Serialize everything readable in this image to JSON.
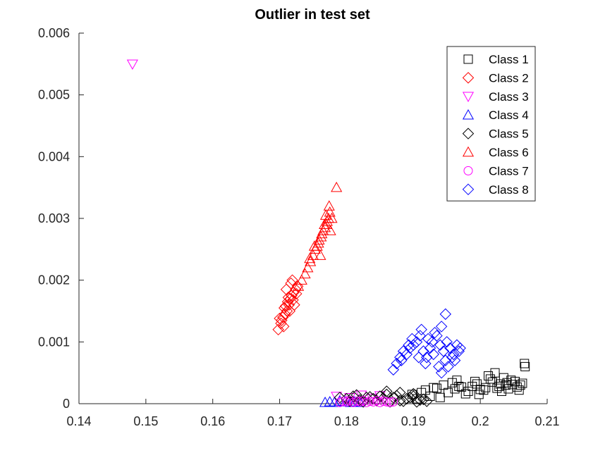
{
  "chart_data": {
    "type": "scatter",
    "title": "Outlier in test set",
    "xlabel": "",
    "ylabel": "",
    "xlim": [
      0.14,
      0.21
    ],
    "ylim": [
      0,
      0.006
    ],
    "xticks": [
      "0.14",
      "0.15",
      "0.16",
      "0.17",
      "0.18",
      "0.19",
      "0.2",
      "0.21"
    ],
    "yticks": [
      "0",
      "0.001",
      "0.002",
      "0.003",
      "0.004",
      "0.005",
      "0.006"
    ],
    "grid": false,
    "legend_position": "top-right",
    "series": [
      {
        "name": "Class 1",
        "marker": "square",
        "color": "#000000",
        "x": [
          0.1898,
          0.1918,
          0.1935,
          0.1952,
          0.1968,
          0.1982,
          0.1995,
          0.2008,
          0.2018,
          0.2028,
          0.2038,
          0.2046,
          0.2055,
          0.2063,
          0.1905,
          0.1925,
          0.1945,
          0.1962,
          0.1978,
          0.1992,
          0.2005,
          0.2015,
          0.2025,
          0.2035,
          0.2042,
          0.2052,
          0.206,
          0.2067,
          0.2066,
          0.1912,
          0.1958,
          0.1988,
          0.2012,
          0.2032,
          0.2048,
          0.194,
          0.1972,
          0.2,
          0.2022,
          0.204,
          0.2058,
          0.193,
          0.1965,
          0.1998,
          0.203
        ],
        "y": [
          0.00015,
          0.00022,
          0.00025,
          0.00018,
          0.00028,
          0.0002,
          0.00032,
          0.00026,
          0.00035,
          0.00028,
          0.0003,
          0.00038,
          0.00027,
          0.00033,
          8e-05,
          0.00012,
          0.0003,
          0.00024,
          0.00016,
          0.00036,
          0.00022,
          0.0004,
          0.00025,
          0.00042,
          0.00024,
          0.00036,
          0.0003,
          0.0006,
          0.00065,
          0.00018,
          0.00034,
          0.00028,
          0.00045,
          0.0002,
          0.00031,
          0.0001,
          0.00027,
          0.00023,
          0.0005,
          0.00034,
          0.00022,
          0.00026,
          0.00038,
          0.00015,
          0.00032
        ]
      },
      {
        "name": "Class 2",
        "marker": "diamond",
        "color": "#ff0000",
        "x": [
          0.1698,
          0.1702,
          0.1705,
          0.1708,
          0.1711,
          0.1714,
          0.1716,
          0.1718,
          0.1721,
          0.1724,
          0.1727,
          0.1703,
          0.1707,
          0.1712,
          0.1715,
          0.1719,
          0.1722,
          0.171,
          0.1706,
          0.1717,
          0.17,
          0.1713,
          0.1709,
          0.1725,
          0.172
        ],
        "y": [
          0.0012,
          0.0013,
          0.0014,
          0.00145,
          0.0015,
          0.0016,
          0.0017,
          0.00175,
          0.0018,
          0.00185,
          0.0019,
          0.00135,
          0.00155,
          0.00165,
          0.0015,
          0.002,
          0.0016,
          0.00185,
          0.00125,
          0.00195,
          0.00138,
          0.00172,
          0.00158,
          0.00178,
          0.00168
        ]
      },
      {
        "name": "Class 3",
        "marker": "triangle-down",
        "color": "#ff00ff",
        "x": [
          0.148,
          0.1785,
          0.1805,
          0.1822,
          0.1838,
          0.185
        ],
        "y": [
          0.0055,
          0.00012,
          0.0001,
          0.00014,
          9e-05,
          0.00013
        ]
      },
      {
        "name": "Class 4",
        "marker": "triangle-up",
        "color": "#0000ff",
        "x": [
          0.1768,
          0.1775,
          0.1782,
          0.179,
          0.1798,
          0.1806,
          0.1812,
          0.182
        ],
        "y": [
          2e-05,
          3e-05,
          2e-05,
          4e-05,
          3e-05,
          2e-05,
          3e-05,
          2e-05
        ]
      },
      {
        "name": "Class 5",
        "marker": "diamond",
        "color": "#000000",
        "x": [
          0.179,
          0.18,
          0.181,
          0.182,
          0.183,
          0.184,
          0.185,
          0.186,
          0.187,
          0.188,
          0.189,
          0.19,
          0.191,
          0.192,
          0.1805,
          0.1825,
          0.1845,
          0.1865,
          0.1885,
          0.1905,
          0.1815,
          0.1835,
          0.1855,
          0.1875,
          0.1895,
          0.1915,
          0.186,
          0.188,
          0.19
        ],
        "y": [
          0.0001,
          8e-05,
          0.00012,
          6e-05,
          0.0001,
          8e-05,
          0.00012,
          0.00015,
          0.0001,
          5e-05,
          8e-05,
          0.00012,
          6e-05,
          4e-05,
          4e-05,
          3e-05,
          5e-05,
          3e-05,
          4e-05,
          3e-05,
          0.00014,
          0.00011,
          9e-05,
          0.00013,
          0.0001,
          7e-05,
          0.0002,
          0.00018,
          0.00016
        ]
      },
      {
        "name": "Class 6",
        "marker": "triangle-up",
        "color": "#ff0000",
        "x": [
          0.1728,
          0.1733,
          0.1738,
          0.1742,
          0.1746,
          0.175,
          0.1753,
          0.1756,
          0.1759,
          0.1762,
          0.1765,
          0.1768,
          0.177,
          0.1773,
          0.1775,
          0.1778,
          0.1785,
          0.1745,
          0.1752,
          0.1758,
          0.1763,
          0.1767,
          0.1771,
          0.1774,
          0.1761,
          0.1769,
          0.1776
        ],
        "y": [
          0.0019,
          0.002,
          0.0021,
          0.0022,
          0.0023,
          0.0024,
          0.0025,
          0.00255,
          0.00265,
          0.0027,
          0.0028,
          0.00285,
          0.0029,
          0.003,
          0.0031,
          0.003,
          0.0035,
          0.00235,
          0.00255,
          0.0026,
          0.00275,
          0.0029,
          0.00295,
          0.0032,
          0.0024,
          0.00305,
          0.0028
        ]
      },
      {
        "name": "Class 7",
        "marker": "circle",
        "color": "#ff00ff",
        "x": [
          0.179,
          0.1795,
          0.18,
          0.1805,
          0.181,
          0.1815,
          0.182,
          0.1825,
          0.183,
          0.1835,
          0.184,
          0.1845,
          0.185,
          0.1855,
          0.186,
          0.1865,
          0.187
        ],
        "y": [
          2e-05,
          4e-05,
          3e-05,
          5e-05,
          2e-05,
          4e-05,
          3e-05,
          5e-05,
          2e-05,
          4e-05,
          3e-05,
          5e-05,
          2e-05,
          4e-05,
          3e-05,
          2e-05,
          3e-05
        ]
      },
      {
        "name": "Class 8",
        "marker": "diamond",
        "color": "#0000ff",
        "x": [
          0.187,
          0.1875,
          0.188,
          0.1885,
          0.189,
          0.1895,
          0.19,
          0.1905,
          0.191,
          0.1915,
          0.192,
          0.1925,
          0.193,
          0.1935,
          0.194,
          0.1945,
          0.195,
          0.1955,
          0.196,
          0.1965,
          0.197,
          0.1882,
          0.1893,
          0.1908,
          0.1918,
          0.1928,
          0.1938,
          0.1948,
          0.1958,
          0.1968,
          0.1912,
          0.1922,
          0.1932,
          0.1942,
          0.1952,
          0.1962,
          0.1948,
          0.1898,
          0.1942
        ],
        "y": [
          0.00055,
          0.00065,
          0.00075,
          0.00085,
          0.0008,
          0.0009,
          0.00095,
          0.001,
          0.0011,
          0.00085,
          0.00075,
          0.0009,
          0.0008,
          0.0011,
          0.00095,
          0.00085,
          0.001,
          0.0009,
          0.0008,
          0.00095,
          0.0009,
          0.0007,
          0.00095,
          0.00075,
          0.00065,
          0.001,
          0.0006,
          0.0007,
          0.00075,
          0.00085,
          0.0012,
          0.00105,
          0.00115,
          0.00125,
          0.0006,
          0.0007,
          0.00145,
          0.00105,
          0.0005
        ]
      }
    ]
  }
}
